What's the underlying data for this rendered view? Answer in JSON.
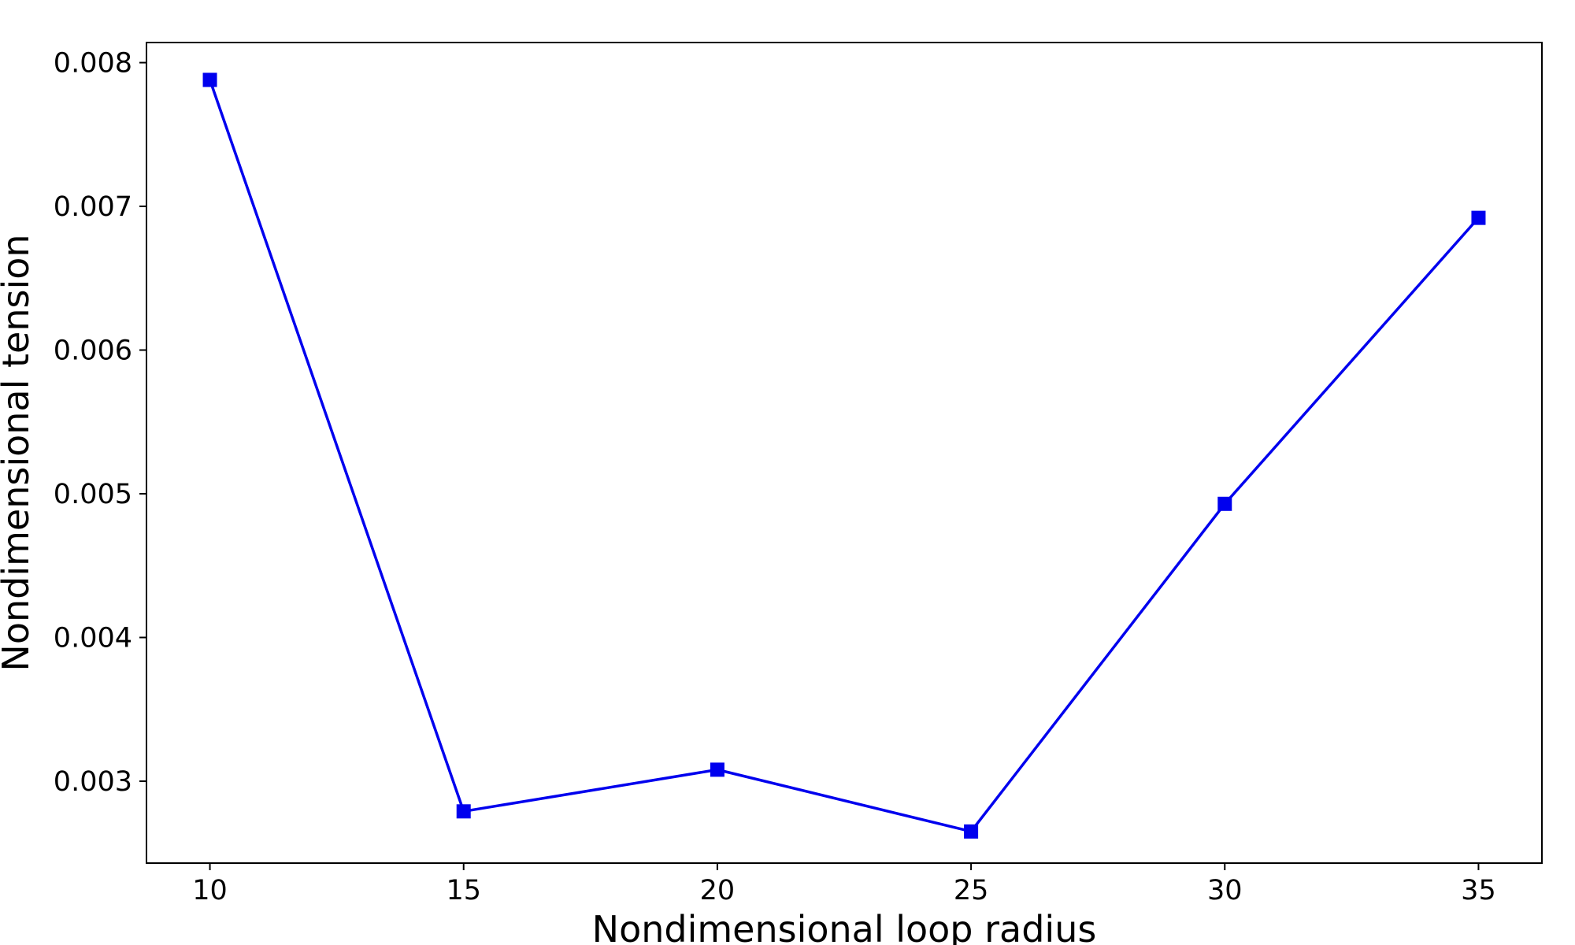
{
  "chart_data": {
    "type": "line",
    "title": "",
    "xlabel": "Nondimensional loop radius",
    "ylabel": "Nondimensional tension",
    "xlim": [
      8.75,
      36.25
    ],
    "ylim": [
      0.00243,
      0.00814
    ],
    "x_ticks": [
      {
        "value": 10,
        "label": "10"
      },
      {
        "value": 15,
        "label": "15"
      },
      {
        "value": 20,
        "label": "20"
      },
      {
        "value": 25,
        "label": "25"
      },
      {
        "value": 30,
        "label": "30"
      },
      {
        "value": 35,
        "label": "35"
      }
    ],
    "y_ticks": [
      {
        "value": 0.003,
        "label": "0.003"
      },
      {
        "value": 0.004,
        "label": "0.004"
      },
      {
        "value": 0.005,
        "label": "0.005"
      },
      {
        "value": 0.006,
        "label": "0.006"
      },
      {
        "value": 0.007,
        "label": "0.007"
      },
      {
        "value": 0.008,
        "label": "0.008"
      }
    ],
    "grid": false,
    "series": [
      {
        "color": "#0000ee",
        "marker": "square",
        "x": [
          10,
          15,
          20,
          25,
          30,
          35
        ],
        "y": [
          0.00788,
          0.00279,
          0.00308,
          0.00265,
          0.00493,
          0.00692
        ]
      }
    ]
  }
}
